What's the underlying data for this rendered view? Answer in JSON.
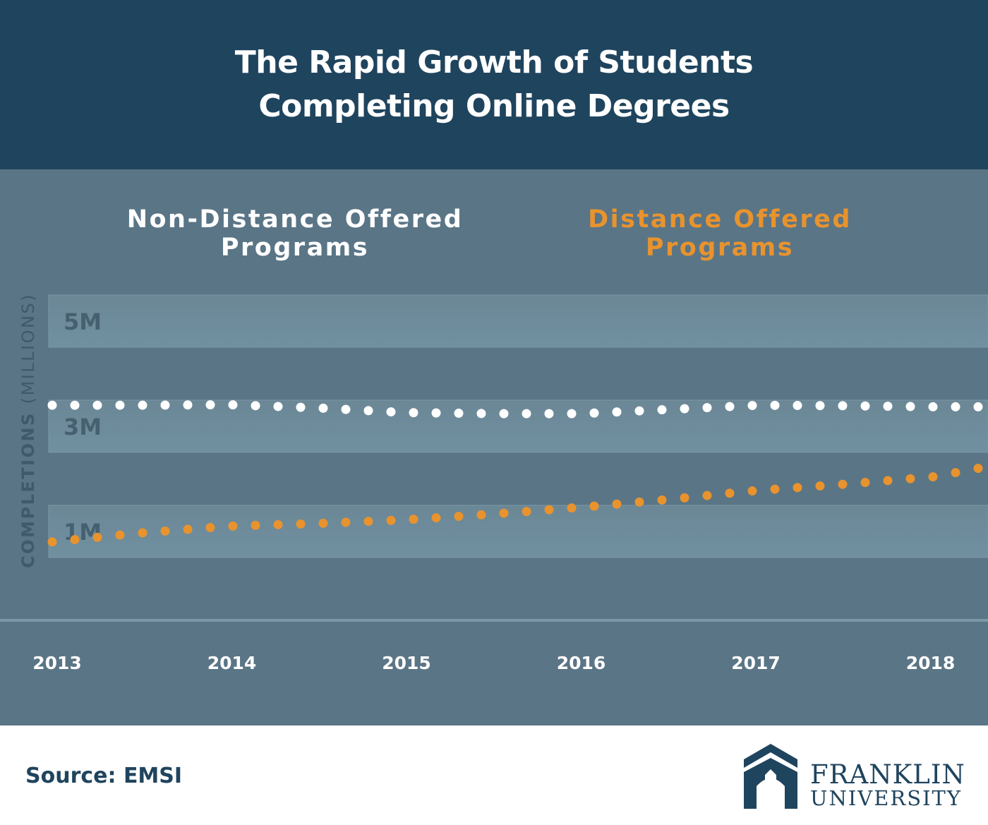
{
  "header": {
    "title_line1": "The Rapid Growth of Students",
    "title_line2": "Completing Online Degrees"
  },
  "colors": {
    "header_bg": "#1f445e",
    "chart_bg": "#5a7586",
    "non_distance": "#ffffff",
    "distance": "#e8932e",
    "tick_text": "#46606f",
    "axis_title": "#3e5a6b"
  },
  "chart_data": {
    "type": "line",
    "title": "",
    "xlabel": "",
    "ylabel": "COMPLETIONS",
    "ylabel_unit": "(MILLIONS)",
    "xlim": [
      2013,
      2018.25
    ],
    "ylim": [
      0,
      5
    ],
    "y_ticks": [
      {
        "label": "5M",
        "value": 5
      },
      {
        "label": "3M",
        "value": 3
      },
      {
        "label": "1M",
        "value": 1
      }
    ],
    "x_ticks": [
      "2013",
      "2014",
      "2015",
      "2016",
      "2017",
      "2018"
    ],
    "legend_placement": "top",
    "series": [
      {
        "name": "Non-Distance Offered Programs",
        "legend_line1": "Non-Distance Offered",
        "legend_line2": "Programs",
        "style": "dotted",
        "color": "#ffffff",
        "x": [
          2013.0,
          2013.5,
          2014.0,
          2014.5,
          2015.0,
          2015.5,
          2016.0,
          2016.5,
          2017.0,
          2017.5,
          2018.0,
          2018.25
        ],
        "y": [
          3.4,
          3.4,
          3.41,
          3.35,
          3.26,
          3.24,
          3.24,
          3.32,
          3.4,
          3.39,
          3.37,
          3.37
        ]
      },
      {
        "name": "Distance Offered Programs",
        "legend_line1": "Distance Offered",
        "legend_line2": "Programs",
        "style": "dotted",
        "color": "#e8932e",
        "x": [
          2013.0,
          2013.5,
          2014.0,
          2014.5,
          2015.0,
          2015.5,
          2016.0,
          2016.5,
          2017.0,
          2017.5,
          2018.0,
          2018.25
        ],
        "y": [
          0.8,
          0.97,
          1.1,
          1.15,
          1.22,
          1.33,
          1.46,
          1.61,
          1.78,
          1.9,
          2.04,
          2.2
        ]
      }
    ]
  },
  "footer": {
    "source": "Source: EMSI",
    "logo_line1": "FRANKLIN",
    "logo_line2": "UNIVERSITY"
  }
}
